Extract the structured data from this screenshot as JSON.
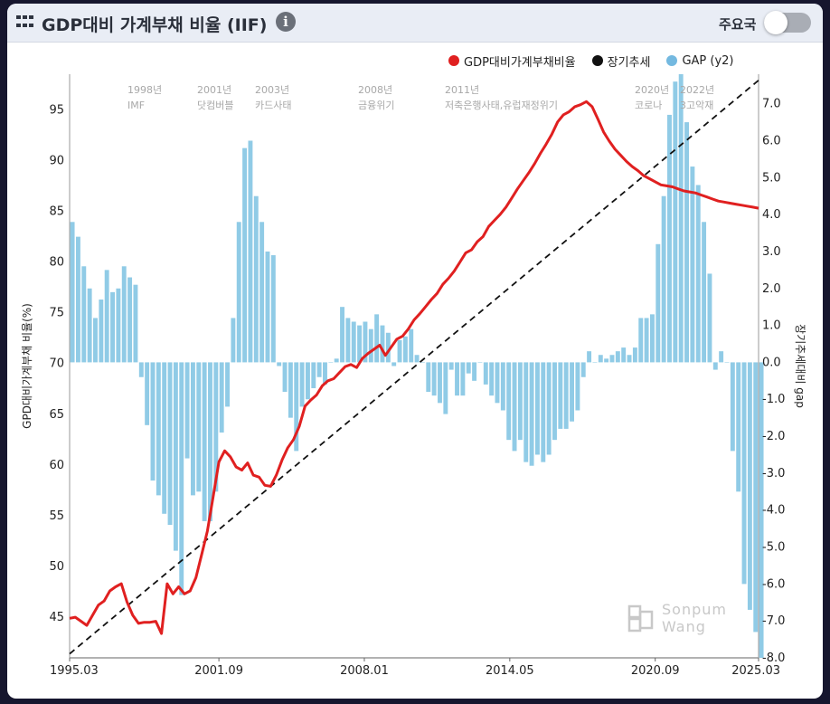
{
  "header": {
    "title": "GDP대비 가계부채 비율 (IIF)",
    "toggle_label": "주요국",
    "toggle_on": false
  },
  "watermark": {
    "line1": "Sonpum",
    "line2": "Wang"
  },
  "legend": [
    {
      "label": "GDP대비가계부채비율",
      "color": "#e02020"
    },
    {
      "label": "장기추세",
      "color": "#111111"
    },
    {
      "label": "GAP (y2)",
      "color": "#74b9e0"
    }
  ],
  "chart_data": {
    "type": "line",
    "colors": {
      "ratio": "#e02020",
      "trend": "#111111",
      "gap": "#90cbe6"
    },
    "y_axis": {
      "label": "GPD대비가계부채 비율(%)",
      "range": [
        41,
        98.5
      ],
      "ticks": [
        "45",
        "50",
        "55",
        "60",
        "65",
        "70",
        "75",
        "80",
        "85",
        "90",
        "95"
      ]
    },
    "y2_axis": {
      "label": "장기추세대비 gap",
      "range": [
        -8.0,
        7.8
      ],
      "ticks": [
        "-8.0",
        "-7.0",
        "-6.0",
        "-5.0",
        "-4.0",
        "-3.0",
        "-2.0",
        "-1.0",
        "0.0",
        "1.0",
        "2.0",
        "3.0",
        "4.0",
        "5.0",
        "6.0",
        "7.0"
      ]
    },
    "x_axis": {
      "range": [
        "1995.03",
        "2025.03"
      ],
      "ticks": [
        "1995.03",
        "2001.09",
        "2008.01",
        "2014.05",
        "2020.09",
        "2025.03"
      ]
    },
    "annotations": [
      {
        "year": "1998년",
        "label": "IMF"
      },
      {
        "year": "2001년",
        "label": "닷컴버블"
      },
      {
        "year": "2003년",
        "label": "카드사태"
      },
      {
        "year": "2008년",
        "label": "금융위기"
      },
      {
        "year": "2011년",
        "label": "저축은행사태,유럽재정위기"
      },
      {
        "year": "2020년",
        "label": "코로나"
      },
      {
        "year": "2022년",
        "label": "3고악재"
      }
    ],
    "trend": {
      "name": "장기추세",
      "x": [
        1995.0,
        2025.0
      ],
      "y": [
        41.4,
        97.9
      ]
    },
    "series": [
      {
        "name": "GDP대비가계부채비율",
        "x": [
          1995.0,
          1995.25,
          1995.5,
          1995.75,
          1996.0,
          1996.25,
          1996.5,
          1996.75,
          1997.0,
          1997.25,
          1997.5,
          1997.75,
          1998.0,
          1998.25,
          1998.5,
          1998.75,
          1999.0,
          1999.25,
          1999.5,
          1999.75,
          2000.0,
          2000.25,
          2000.5,
          2000.75,
          2001.0,
          2001.25,
          2001.5,
          2001.75,
          2002.0,
          2002.25,
          2002.5,
          2002.75,
          2003.0,
          2003.25,
          2003.5,
          2003.75,
          2004.0,
          2004.25,
          2004.5,
          2004.75,
          2005.0,
          2005.25,
          2005.5,
          2005.75,
          2006.0,
          2006.25,
          2006.5,
          2006.75,
          2007.0,
          2007.25,
          2007.5,
          2007.75,
          2008.0,
          2008.25,
          2008.5,
          2008.75,
          2009.0,
          2009.25,
          2009.5,
          2009.75,
          2010.0,
          2010.25,
          2010.5,
          2010.75,
          2011.0,
          2011.25,
          2011.5,
          2011.75,
          2012.0,
          2012.25,
          2012.5,
          2012.75,
          2013.0,
          2013.25,
          2013.5,
          2013.75,
          2014.0,
          2014.25,
          2014.5,
          2014.75,
          2015.0,
          2015.25,
          2015.5,
          2015.75,
          2016.0,
          2016.25,
          2016.5,
          2016.75,
          2017.0,
          2017.25,
          2017.5,
          2017.75,
          2018.0,
          2018.25,
          2018.5,
          2018.75,
          2019.0,
          2019.25,
          2019.5,
          2019.75,
          2020.0,
          2020.25,
          2020.5,
          2020.75,
          2021.0,
          2021.25,
          2021.5,
          2021.75,
          2022.0,
          2022.25,
          2022.5,
          2022.75,
          2023.0,
          2023.25,
          2023.5,
          2023.75,
          2024.0,
          2024.25,
          2024.5,
          2024.75,
          2025.0
        ],
        "values": [
          44.9,
          45.0,
          44.6,
          44.2,
          45.2,
          46.2,
          46.6,
          47.6,
          48.0,
          48.3,
          46.5,
          45.2,
          44.4,
          44.5,
          44.5,
          44.6,
          43.4,
          48.3,
          47.3,
          48.0,
          47.3,
          47.6,
          48.9,
          51.2,
          53.5,
          56.9,
          60.3,
          61.4,
          60.8,
          59.8,
          59.5,
          60.2,
          59.0,
          58.8,
          58.0,
          57.9,
          59.0,
          60.5,
          61.7,
          62.5,
          63.8,
          65.8,
          66.4,
          66.9,
          67.8,
          68.3,
          68.5,
          69.1,
          69.7,
          69.9,
          69.6,
          70.5,
          71.0,
          71.4,
          71.8,
          70.8,
          71.6,
          72.4,
          72.7,
          73.4,
          74.3,
          74.9,
          75.6,
          76.3,
          76.9,
          77.8,
          78.4,
          79.1,
          80.0,
          80.9,
          81.2,
          82.0,
          82.5,
          83.5,
          84.1,
          84.7,
          85.4,
          86.3,
          87.2,
          88.0,
          88.8,
          89.7,
          90.7,
          91.6,
          92.6,
          93.8,
          94.5,
          94.8,
          95.3,
          95.5,
          95.8,
          95.3,
          94.1,
          92.8,
          91.9,
          91.1,
          90.5,
          89.9,
          89.4,
          89.0,
          88.5,
          88.2,
          87.9,
          87.6,
          87.5,
          87.4,
          87.2,
          87.0,
          86.9,
          86.8,
          86.6,
          86.4,
          86.2,
          86.0,
          85.9,
          85.8,
          85.7,
          85.6,
          85.5,
          85.4,
          85.3
        ]
      },
      {
        "name": "GAP (y2)",
        "x": [
          1995.0,
          1995.25,
          1995.5,
          1995.75,
          1996.0,
          1996.25,
          1996.5,
          1996.75,
          1997.0,
          1997.25,
          1997.5,
          1997.75,
          1998.0,
          1998.25,
          1998.5,
          1998.75,
          1999.0,
          1999.25,
          1999.5,
          1999.75,
          2000.0,
          2000.25,
          2000.5,
          2000.75,
          2001.0,
          2001.25,
          2001.5,
          2001.75,
          2002.0,
          2002.25,
          2002.5,
          2002.75,
          2003.0,
          2003.25,
          2003.5,
          2003.75,
          2004.0,
          2004.25,
          2004.5,
          2004.75,
          2005.0,
          2005.25,
          2005.5,
          2005.75,
          2006.0,
          2006.25,
          2006.5,
          2006.75,
          2007.0,
          2007.25,
          2007.5,
          2007.75,
          2008.0,
          2008.25,
          2008.5,
          2008.75,
          2009.0,
          2009.25,
          2009.5,
          2009.75,
          2010.0,
          2010.25,
          2010.5,
          2010.75,
          2011.0,
          2011.25,
          2011.5,
          2011.75,
          2012.0,
          2012.25,
          2012.5,
          2012.75,
          2013.0,
          2013.25,
          2013.5,
          2013.75,
          2014.0,
          2014.25,
          2014.5,
          2014.75,
          2015.0,
          2015.25,
          2015.5,
          2015.75,
          2016.0,
          2016.25,
          2016.5,
          2016.75,
          2017.0,
          2017.25,
          2017.5,
          2017.75,
          2018.0,
          2018.25,
          2018.5,
          2018.75,
          2019.0,
          2019.25,
          2019.5,
          2019.75,
          2020.0,
          2020.25,
          2020.5,
          2020.75,
          2021.0,
          2021.25,
          2021.5,
          2021.75,
          2022.0,
          2022.25,
          2022.5,
          2022.75,
          2023.0,
          2023.25,
          2023.5,
          2023.75,
          2024.0,
          2024.25,
          2024.5,
          2024.75,
          2025.0
        ],
        "values": [
          3.8,
          3.4,
          2.6,
          2.0,
          1.2,
          1.7,
          2.5,
          1.9,
          2.0,
          2.6,
          2.3,
          2.1,
          -0.4,
          -1.7,
          -3.2,
          -3.6,
          -4.1,
          -4.4,
          -5.1,
          -6.3,
          -2.6,
          -3.6,
          -3.5,
          -4.3,
          -4.3,
          -3.5,
          -1.9,
          -1.2,
          1.2,
          3.8,
          5.8,
          6.0,
          4.5,
          3.8,
          3.0,
          2.9,
          -0.1,
          -0.8,
          -1.5,
          -2.4,
          -1.2,
          -1.0,
          -0.7,
          -0.4,
          -0.6,
          0.0,
          0.1,
          1.5,
          1.2,
          1.1,
          1.0,
          1.1,
          0.9,
          1.3,
          1.0,
          0.8,
          -0.1,
          0.6,
          0.7,
          0.9,
          0.2,
          0.0,
          -0.8,
          -0.9,
          -1.1,
          -1.4,
          -0.2,
          -0.9,
          -0.9,
          -0.3,
          -0.5,
          0.0,
          -0.6,
          -0.9,
          -1.1,
          -1.3,
          -2.1,
          -2.4,
          -2.1,
          -2.7,
          -2.8,
          -2.5,
          -2.7,
          -2.5,
          -2.1,
          -1.8,
          -1.8,
          -1.6,
          -1.3,
          -0.4,
          0.3,
          0.0,
          0.2,
          0.1,
          0.2,
          0.3,
          0.4,
          0.2,
          0.4,
          1.2,
          1.2,
          1.3,
          3.2,
          4.5,
          6.7,
          7.6,
          7.8,
          6.5,
          5.3,
          4.8,
          3.8,
          2.4,
          -0.2,
          0.3,
          0.0,
          -2.4,
          -3.5,
          -6.0,
          -6.7,
          -7.3,
          -8.0
        ]
      }
    ]
  }
}
